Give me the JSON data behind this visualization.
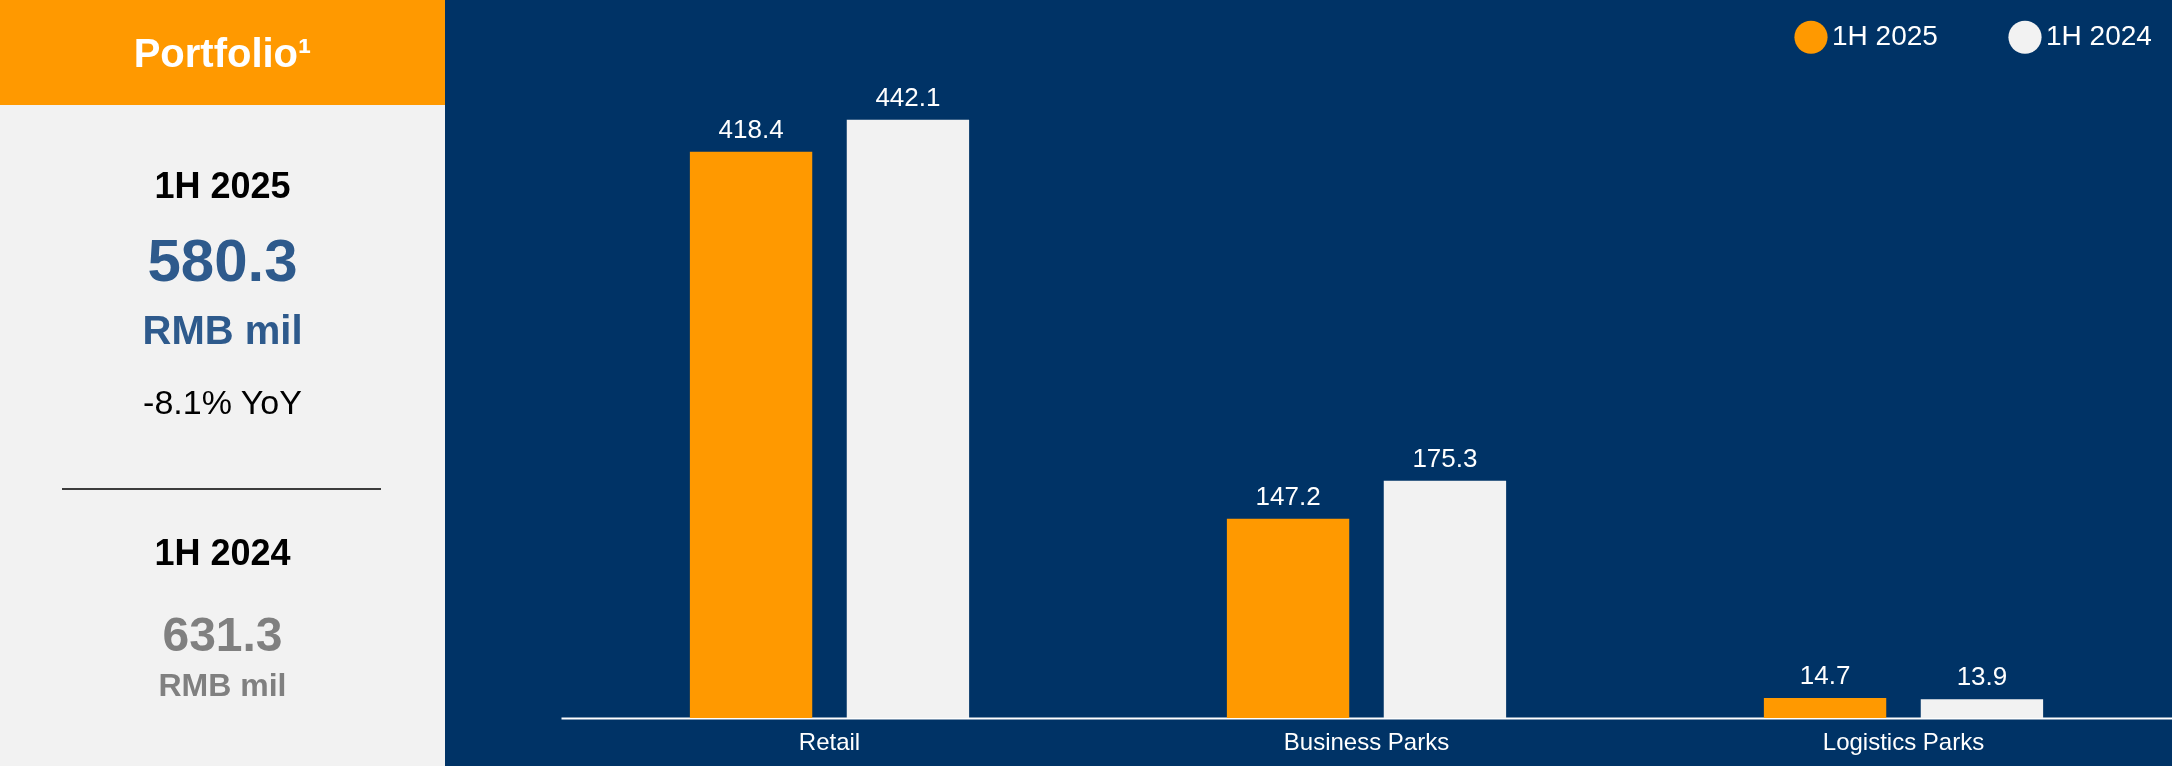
{
  "chart_data": [
    {
      "type": "other",
      "title": "Portfolio¹",
      "annotations": [
        "1H 2025",
        "580.3",
        "RMB mil",
        "-8.1% YoY",
        "1H 2024",
        "631.3",
        "RMB mil"
      ]
    },
    {
      "type": "bar",
      "categories": [
        "Retail",
        "Business Parks",
        "Logistics Parks"
      ],
      "series": [
        {
          "name": "1H 2025",
          "color": "#ff9900",
          "values": [
            418.4,
            147.2,
            14.7
          ]
        },
        {
          "name": "1H 2024",
          "color": "#f2f2f2",
          "values": [
            442.1,
            175.3,
            13.9
          ]
        }
      ],
      "data_labels": true,
      "legend": "top right",
      "grid": false
    }
  ]
}
